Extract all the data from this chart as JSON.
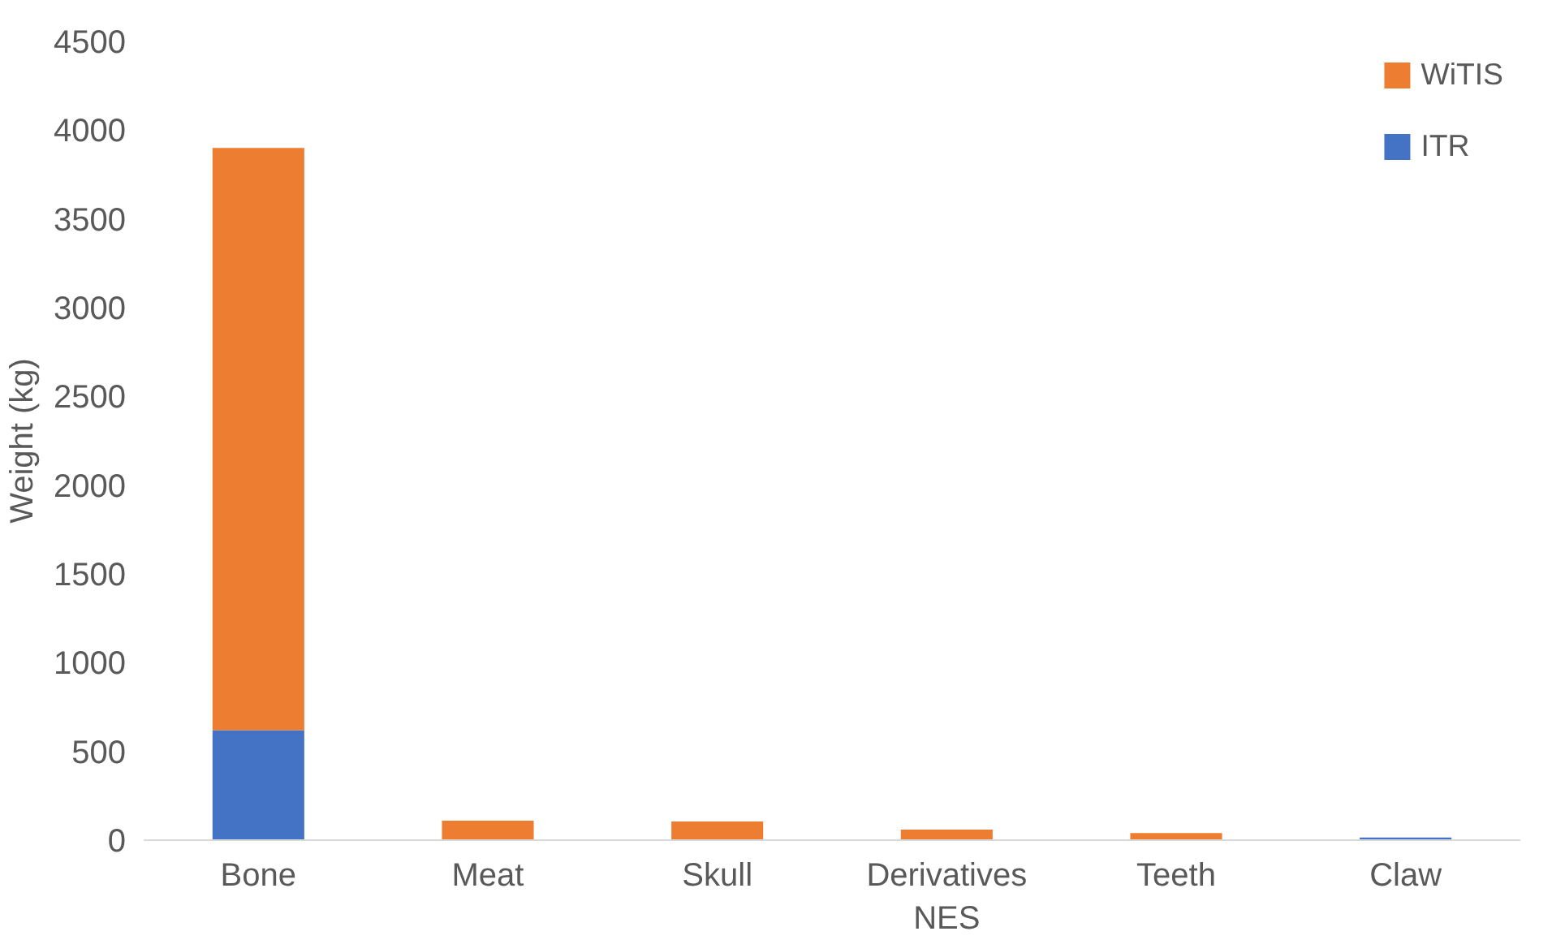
{
  "chart_data": {
    "type": "bar",
    "stacked": true,
    "ylabel": "Weight (kg)",
    "categories": [
      "Bone",
      "Meat",
      "Skull",
      "Derivatives NES",
      "Teeth",
      "Claw"
    ],
    "series": [
      {
        "name": "ITR",
        "color": "#4472c4",
        "values": [
          620,
          0,
          0,
          0,
          0,
          15
        ]
      },
      {
        "name": "WiTIS",
        "color": "#ed7d31",
        "values": [
          3280,
          110,
          105,
          60,
          40,
          0
        ]
      }
    ],
    "ylim": [
      0,
      4500
    ],
    "yticks": [
      0,
      500,
      1000,
      1500,
      2000,
      2500,
      3000,
      3500,
      4000,
      4500
    ],
    "grid": false,
    "legend": "top right"
  }
}
